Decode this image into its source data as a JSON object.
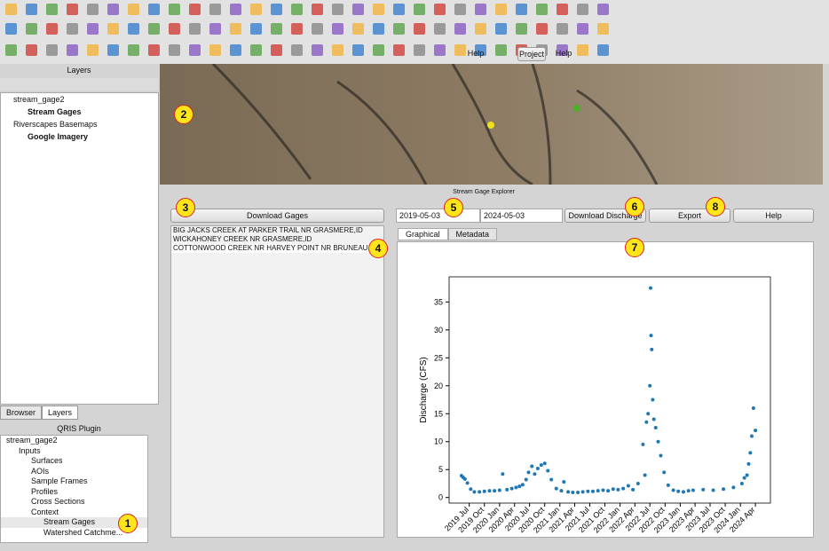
{
  "toolbar": {
    "help_1": "Help",
    "project": "Project",
    "help_2": "Help"
  },
  "layers_panel": {
    "title": "Layers",
    "items": [
      "stream_gage2",
      "Stream Gages",
      "Riverscapes Basemaps",
      "Google Imagery"
    ]
  },
  "dock_tabs": [
    "Browser",
    "Layers"
  ],
  "plugin_panel": {
    "title": "QRIS Plugin",
    "tree": [
      "stream_gage2",
      "Inputs",
      "Surfaces",
      "AOIs",
      "Sample Frames",
      "Profiles",
      "Cross Sections",
      "Context",
      "Stream Gages",
      "Watershed Catchme..."
    ]
  },
  "explorer": {
    "title": "Stream Gage Explorer",
    "download_gages": "Download Gages",
    "gages": [
      "BIG JACKS CREEK AT PARKER TRAIL NR GRASMERE,ID",
      "WICKAHONEY CREEK NR GRASMERE,ID",
      "COTTONWOOD CREEK NR HARVEY POINT NR BRUNEAU,ID"
    ],
    "start_date": "2019-05-03",
    "end_date": "2024-05-03",
    "download_discharge": "Download Discharge",
    "export": "Export",
    "help": "Help",
    "tabs": [
      "Graphical",
      "Metadata"
    ]
  },
  "callouts": [
    1,
    2,
    3,
    4,
    5,
    6,
    7,
    8
  ],
  "chart_data": {
    "type": "scatter",
    "ylabel": "Discharge (CFS)",
    "color": "#1f77b4",
    "x": [
      "2019-05-15",
      "2019-05-25",
      "2019-06-05",
      "2019-06-20",
      "2019-07-10",
      "2019-08-01",
      "2019-09-01",
      "2019-10-01",
      "2019-11-01",
      "2019-12-01",
      "2020-01-01",
      "2020-01-20",
      "2020-02-15",
      "2020-03-15",
      "2020-04-10",
      "2020-05-01",
      "2020-05-20",
      "2020-06-10",
      "2020-06-25",
      "2020-07-15",
      "2020-08-01",
      "2020-08-20",
      "2020-09-10",
      "2020-10-01",
      "2020-10-20",
      "2020-11-10",
      "2020-12-10",
      "2021-01-10",
      "2021-01-25",
      "2021-02-20",
      "2021-03-20",
      "2021-04-20",
      "2021-05-20",
      "2021-06-20",
      "2021-07-20",
      "2021-08-20",
      "2021-09-20",
      "2021-10-20",
      "2021-11-20",
      "2021-12-20",
      "2022-01-20",
      "2022-02-20",
      "2022-03-20",
      "2022-04-20",
      "2022-05-20",
      "2022-06-01",
      "2022-06-10",
      "2022-06-20",
      "2022-07-01",
      "2022-07-05",
      "2022-07-08",
      "2022-07-12",
      "2022-07-18",
      "2022-07-25",
      "2022-08-05",
      "2022-08-20",
      "2022-09-05",
      "2022-09-25",
      "2022-10-20",
      "2022-11-20",
      "2022-12-20",
      "2023-01-20",
      "2023-02-20",
      "2023-03-20",
      "2023-05-20",
      "2023-07-20",
      "2023-09-20",
      "2023-11-20",
      "2024-01-10",
      "2024-01-25",
      "2024-02-10",
      "2024-02-20",
      "2024-03-01",
      "2024-03-10",
      "2024-03-20",
      "2024-04-01"
    ],
    "values": [
      3.9,
      3.6,
      3.3,
      2.6,
      1.5,
      1.0,
      1.0,
      1.1,
      1.2,
      1.2,
      1.3,
      4.2,
      1.4,
      1.6,
      1.8,
      2.0,
      2.3,
      3.2,
      4.5,
      5.6,
      4.2,
      5.2,
      5.8,
      6.1,
      4.8,
      3.2,
      1.6,
      1.2,
      2.8,
      1.0,
      0.9,
      0.9,
      1.0,
      1.1,
      1.1,
      1.2,
      1.3,
      1.2,
      1.5,
      1.4,
      1.6,
      2.1,
      1.4,
      2.5,
      9.5,
      4.0,
      13.5,
      15.0,
      20.0,
      37.5,
      29.0,
      26.5,
      17.5,
      14.0,
      12.5,
      10.0,
      7.5,
      4.5,
      2.2,
      1.3,
      1.1,
      1.0,
      1.2,
      1.3,
      1.4,
      1.3,
      1.5,
      1.8,
      2.5,
      3.5,
      4.0,
      6.0,
      8.0,
      11.0,
      16.0,
      12.0
    ],
    "xlim": [
      "2019-03-01",
      "2024-07-01"
    ],
    "ylim": [
      -1,
      39.5
    ],
    "yticks": [
      0,
      5,
      10,
      15,
      20,
      25,
      30,
      35
    ],
    "xticks": [
      {
        "value": "2019-07-01",
        "label": "2019 Jul"
      },
      {
        "value": "2019-10-01",
        "label": "2019 Oct"
      },
      {
        "value": "2020-01-01",
        "label": "2020 Jan"
      },
      {
        "value": "2020-04-01",
        "label": "2020 Apr"
      },
      {
        "value": "2020-07-01",
        "label": "2020 Jul"
      },
      {
        "value": "2020-10-01",
        "label": "2020 Oct"
      },
      {
        "value": "2021-01-01",
        "label": "2021 Jan"
      },
      {
        "value": "2021-04-01",
        "label": "2021 Apr"
      },
      {
        "value": "2021-07-01",
        "label": "2021 Jul"
      },
      {
        "value": "2021-10-01",
        "label": "2021 Oct"
      },
      {
        "value": "2022-01-01",
        "label": "2022 Jan"
      },
      {
        "value": "2022-04-01",
        "label": "2022 Apr"
      },
      {
        "value": "2022-07-01",
        "label": "2022 Jul"
      },
      {
        "value": "2022-10-01",
        "label": "2022 Oct"
      },
      {
        "value": "2023-01-01",
        "label": "2023 Jan"
      },
      {
        "value": "2023-04-01",
        "label": "2023 Apr"
      },
      {
        "value": "2023-07-01",
        "label": "2023 Jul"
      },
      {
        "value": "2023-10-01",
        "label": "2023 Oct"
      },
      {
        "value": "2024-01-01",
        "label": "2024 Jan"
      },
      {
        "value": "2024-04-01",
        "label": "2024 Apr"
      }
    ]
  }
}
